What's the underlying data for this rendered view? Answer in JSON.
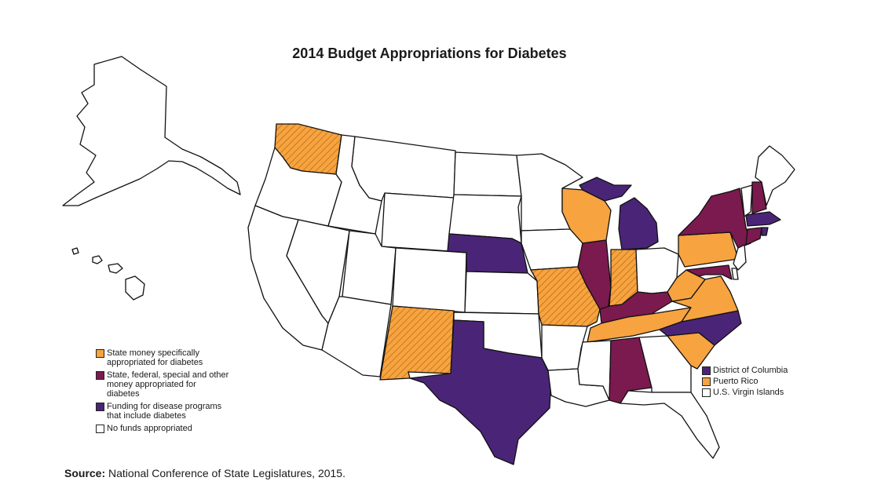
{
  "title": "2014 Budget Appropriations for Diabetes",
  "colors": {
    "state_money": "#f7a340",
    "state_federal": "#7b1a4e",
    "disease_programs": "#4a2577",
    "no_funds": "#ffffff",
    "outline": "#111111"
  },
  "legend": [
    {
      "category": "state_money",
      "label": "State money specifically appropriated for diabetes"
    },
    {
      "category": "state_federal",
      "label": "State, federal, special and other money appropriated for diabetes"
    },
    {
      "category": "disease_programs",
      "label": "Funding for disease programs that include diabetes"
    },
    {
      "category": "no_funds",
      "label": "No funds appropriated"
    }
  ],
  "territories": [
    {
      "category": "disease_programs",
      "label": "District of Columbia"
    },
    {
      "category": "state_money",
      "label": "Puerto Rico"
    },
    {
      "category": "no_funds",
      "label": "U.S. Virgin Islands"
    }
  ],
  "source": {
    "label": "Source:",
    "text": "National Conference of State Legislatures, 2015."
  },
  "states": {
    "WA": {
      "category": "state_money",
      "hatched": true
    },
    "OR": {
      "category": "no_funds"
    },
    "CA": {
      "category": "no_funds"
    },
    "NV": {
      "category": "no_funds"
    },
    "ID": {
      "category": "no_funds"
    },
    "MT": {
      "category": "no_funds"
    },
    "WY": {
      "category": "no_funds"
    },
    "UT": {
      "category": "no_funds"
    },
    "AZ": {
      "category": "no_funds"
    },
    "CO": {
      "category": "no_funds"
    },
    "NM": {
      "category": "state_money",
      "hatched": true
    },
    "ND": {
      "category": "no_funds"
    },
    "SD": {
      "category": "no_funds"
    },
    "NE": {
      "category": "disease_programs"
    },
    "KS": {
      "category": "no_funds"
    },
    "OK": {
      "category": "no_funds"
    },
    "TX": {
      "category": "disease_programs"
    },
    "MN": {
      "category": "no_funds"
    },
    "IA": {
      "category": "no_funds"
    },
    "MO": {
      "category": "state_money",
      "hatched": true
    },
    "AR": {
      "category": "no_funds"
    },
    "LA": {
      "category": "no_funds"
    },
    "WI": {
      "category": "state_money"
    },
    "IL": {
      "category": "state_federal"
    },
    "IN": {
      "category": "state_money",
      "hatched": true
    },
    "MI": {
      "category": "disease_programs"
    },
    "OH": {
      "category": "no_funds"
    },
    "KY": {
      "category": "state_federal"
    },
    "TN": {
      "category": "state_money"
    },
    "MS": {
      "category": "no_funds"
    },
    "AL": {
      "category": "state_federal"
    },
    "GA": {
      "category": "no_funds"
    },
    "FL": {
      "category": "no_funds"
    },
    "SC": {
      "category": "state_money"
    },
    "NC": {
      "category": "disease_programs"
    },
    "VA": {
      "category": "state_money"
    },
    "WV": {
      "category": "state_money"
    },
    "PA": {
      "category": "state_money"
    },
    "NY": {
      "category": "state_federal"
    },
    "NJ": {
      "category": "no_funds"
    },
    "DE": {
      "category": "no_funds"
    },
    "MD": {
      "category": "state_federal"
    },
    "CT": {
      "category": "state_federal"
    },
    "RI": {
      "category": "disease_programs"
    },
    "MA": {
      "category": "disease_programs"
    },
    "VT": {
      "category": "no_funds"
    },
    "NH": {
      "category": "state_federal"
    },
    "ME": {
      "category": "no_funds"
    },
    "AK": {
      "category": "no_funds"
    },
    "HI": {
      "category": "no_funds"
    }
  }
}
